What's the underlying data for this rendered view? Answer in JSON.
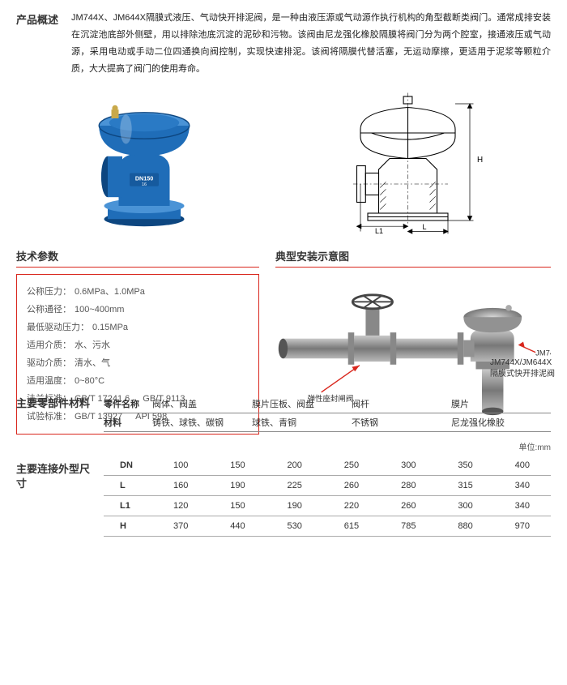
{
  "overview": {
    "title": "产品概述",
    "desc": "JM744X、JM644X隔膜式液压、气动快开排泥阀，是一种由液压源或气动源作执行机构的角型截断类阀门。通常成排安装在沉淀池底部外侧壁，用以排除池底沉淀的泥砂和污物。该阀由尼龙强化橡胶隔膜将阀门分为两个腔室，接通液压或气动源，采用电动或手动二位四通换向阀控制，实现快速排泥。该阀将隔膜代替活塞，无运动摩擦，更适用于泥浆等颗粒介质，大大提高了阀门的使用寿命。"
  },
  "techParams": {
    "title": "技术参数",
    "rows": [
      {
        "k": "公称压力：",
        "v": "0.6MPa、1.0MPa"
      },
      {
        "k": "公称通径：",
        "v": "100~400mm"
      },
      {
        "k": "最低驱动压力：",
        "v": "0.15MPa"
      },
      {
        "k": "适用介质：",
        "v": "水、污水"
      },
      {
        "k": "驱动介质：",
        "v": "清水、气"
      },
      {
        "k": "适用温度：",
        "v": "0~80°C"
      }
    ],
    "stdRows": [
      {
        "k": "法兰标准：",
        "v": "GB/T 17241.6",
        "v2": "GB/T 9113"
      },
      {
        "k": "试验标准：",
        "v": "GB/T 13927",
        "v2": "API 598"
      }
    ]
  },
  "install": {
    "title": "典型安装示意图",
    "gateValveLabel": "弹性座封闸阀",
    "productLabel1": "JM744X/JM644X",
    "productLabel2": "隔膜式快开排泥阀"
  },
  "materials": {
    "title": "主要零部件材料",
    "header": [
      "零件名称",
      "阀体、阀盖",
      "膜片压板、阀盘",
      "阀杆",
      "膜片"
    ],
    "row": [
      "材料",
      "铸铁、球铁、碳钢",
      "球铁、青铜",
      "不锈钢",
      "尼龙强化橡胶"
    ]
  },
  "unit": "单位:mm",
  "dimensions": {
    "title": "主要连接外型尺寸",
    "header": [
      "DN",
      "100",
      "150",
      "200",
      "250",
      "300",
      "350",
      "400"
    ],
    "rows": [
      [
        "L",
        "160",
        "190",
        "225",
        "260",
        "280",
        "315",
        "340"
      ],
      [
        "L1",
        "120",
        "150",
        "190",
        "220",
        "260",
        "300",
        "340"
      ],
      [
        "H",
        "370",
        "440",
        "530",
        "615",
        "785",
        "880",
        "970"
      ]
    ]
  },
  "diagLabels": {
    "H": "H",
    "L1": "L1",
    "L": "L"
  },
  "colors": {
    "accent": "#d9261c",
    "valveBlue": "#1f6db8",
    "valveBlueLight": "#4a93d6",
    "pipeGray": "#9a9a9a",
    "pipeDark": "#6b6b6b"
  }
}
